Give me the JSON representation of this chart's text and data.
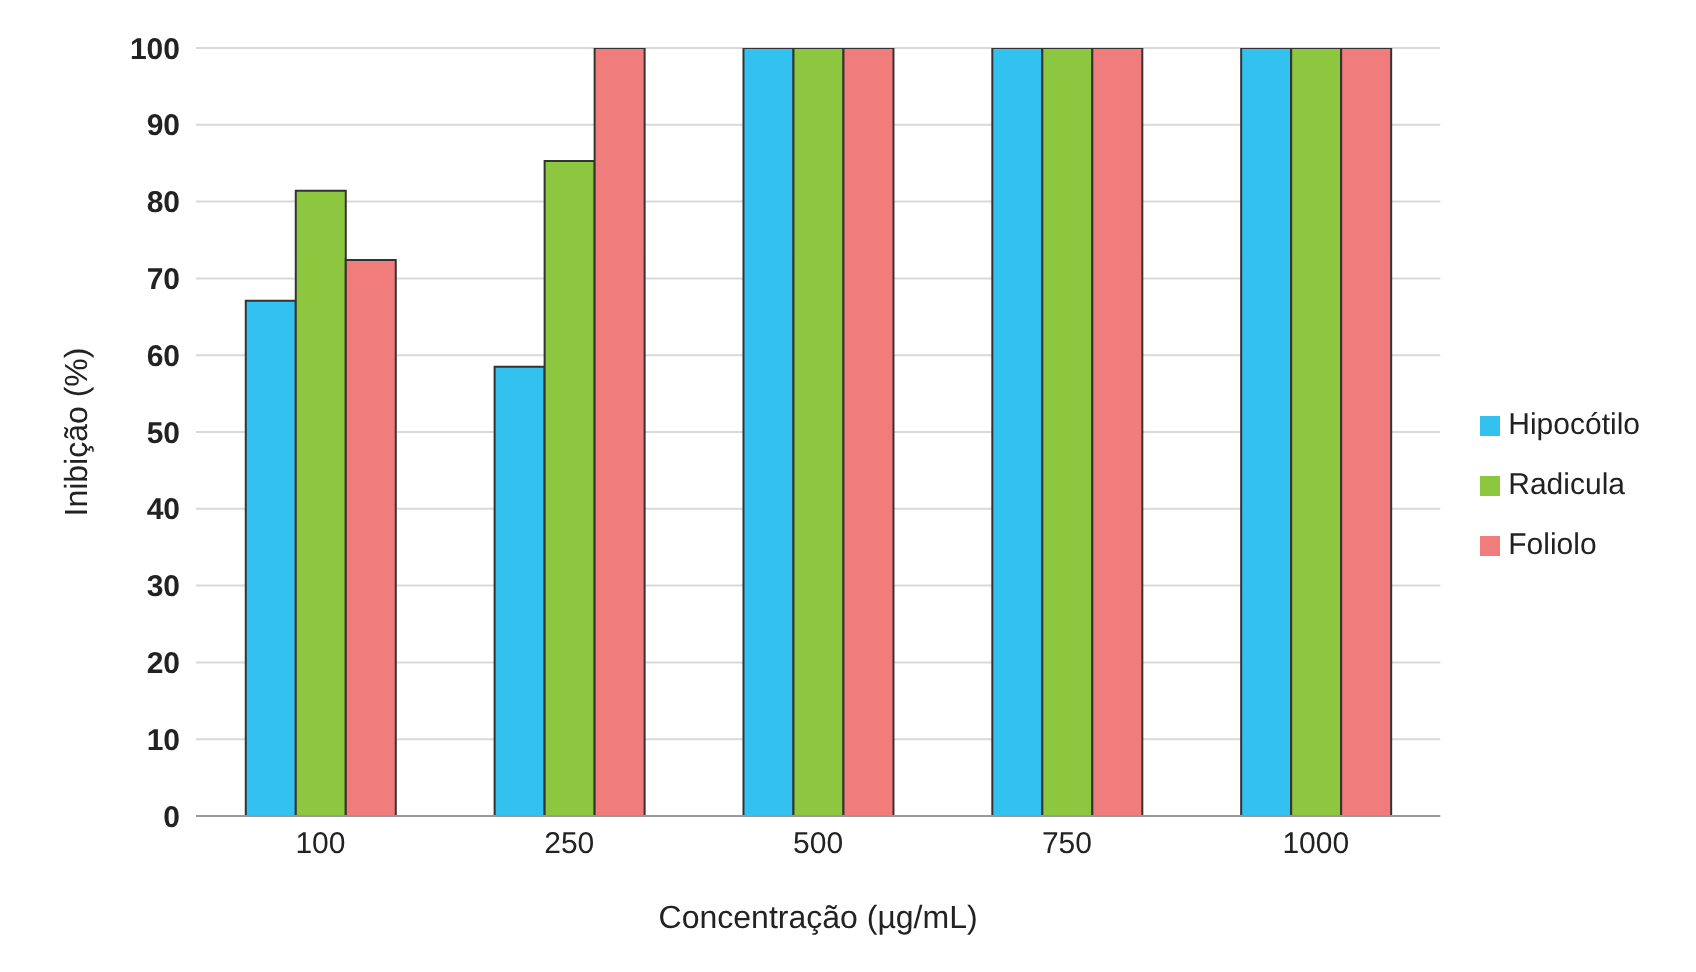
{
  "chart_data": {
    "type": "bar",
    "xlabel": "Concentração (µg/mL)",
    "ylabel": "Inibição (%)",
    "categories": [
      "100",
      "250",
      "500",
      "750",
      "1000"
    ],
    "series": [
      {
        "name": "Hipocótilo",
        "color": "#33c1ef",
        "values": [
          67.1,
          58.5,
          100,
          100,
          100
        ]
      },
      {
        "name": "Radicula",
        "color": "#8dc63f",
        "values": [
          81.4,
          85.3,
          100,
          100,
          100
        ]
      },
      {
        "name": "Foliolo",
        "color": "#f07c7c",
        "values": [
          72.4,
          100,
          100,
          100,
          100
        ]
      }
    ],
    "ylim": [
      0,
      100
    ],
    "yticks": [
      0,
      10,
      20,
      30,
      40,
      50,
      60,
      70,
      80,
      90,
      100
    ],
    "grid": "y",
    "legend": "right"
  }
}
